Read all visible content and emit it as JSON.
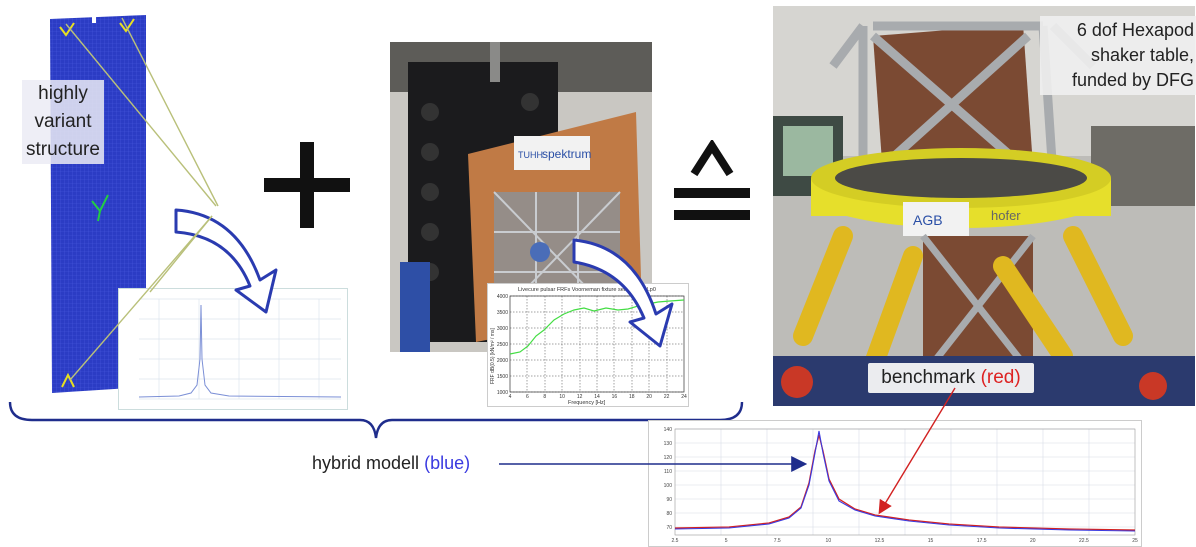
{
  "fem": {
    "label_lines": [
      "highly",
      "variant",
      "structure"
    ],
    "mesh_color": "#2436b8"
  },
  "operators": {
    "plus": "+",
    "equivalent": "≙"
  },
  "test_plot": {
    "title": "Livecure pulsar FRFs Voorneman fixture setup 1000 Lp0",
    "ylabel": "FRF dB(0.5) [kN/m² / ms]",
    "xlabel": "Frequency [Hz]",
    "x_ticks": [
      "4",
      "6",
      "8",
      "10",
      "12",
      "14",
      "16",
      "18",
      "20",
      "22",
      "24"
    ],
    "y_ticks": [
      "4000",
      "3500",
      "3000",
      "2500",
      "2000",
      "1500",
      "1000"
    ]
  },
  "hexapod": {
    "caption_lines": [
      "6 dof Hexapod",
      "shaker table,",
      "funded by DFG"
    ],
    "logo_left": "AGB",
    "logo_right": "hofer"
  },
  "specimen_photo": {
    "sign_brand": "TUHH",
    "sign_text": "spektrum"
  },
  "benchmark": {
    "text": "benchmark",
    "highlight": "(red)",
    "color": "#d22222"
  },
  "hybrid": {
    "text": "hybrid modell",
    "highlight": "(blue)",
    "color": "#3a3ae0"
  },
  "result_plot": {
    "x_ticks": [
      "2.5",
      "5",
      "7.5",
      "10",
      "12.5",
      "15",
      "17.5",
      "20",
      "22.5",
      "25"
    ],
    "y_ticks": [
      "140",
      "130",
      "120",
      "110",
      "100",
      "90",
      "80",
      "70"
    ],
    "series": [
      {
        "color": "#3a3ae0"
      },
      {
        "color": "#d22222"
      }
    ]
  }
}
